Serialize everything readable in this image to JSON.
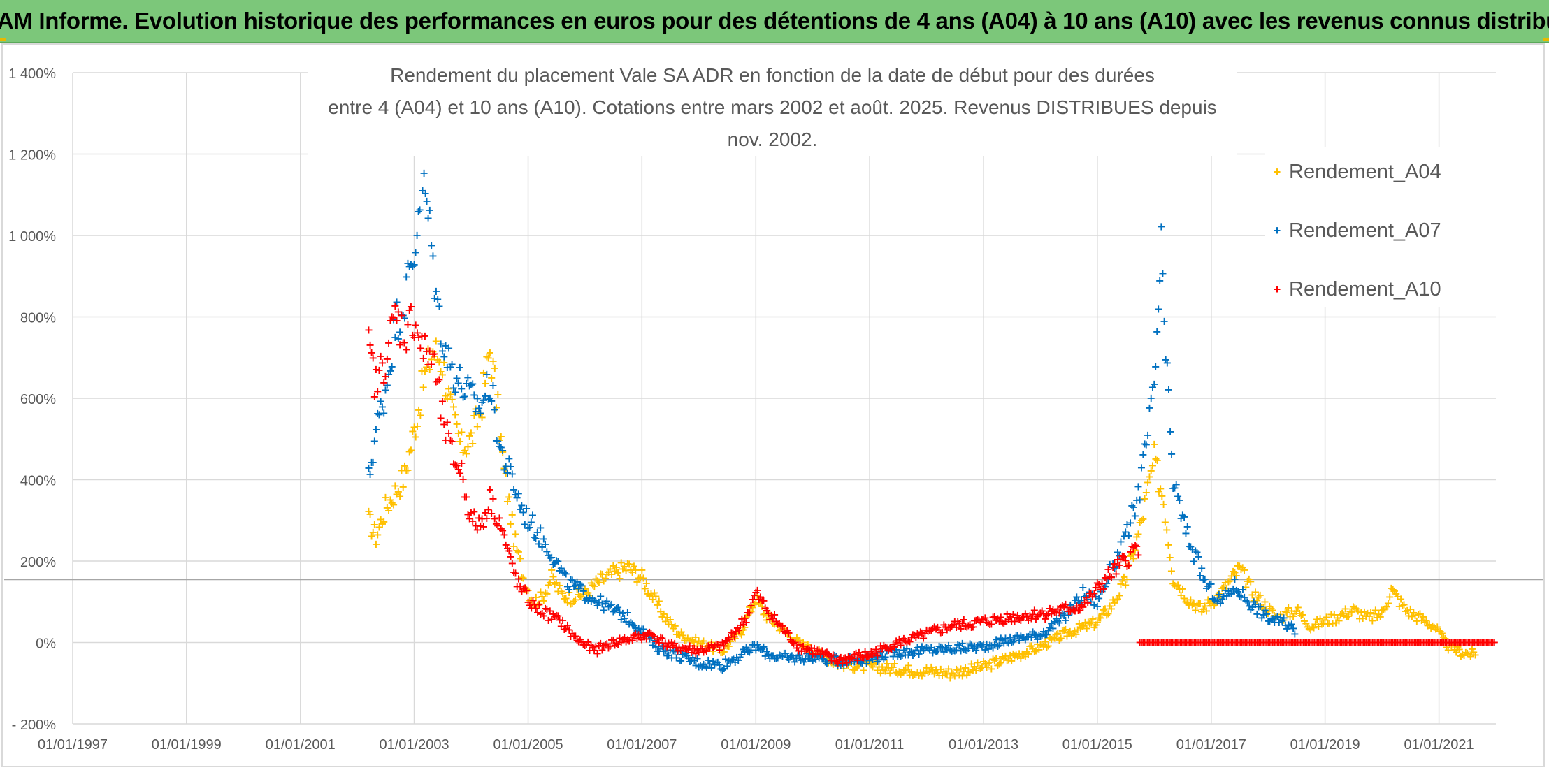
{
  "header": {
    "banner": "ADAM Informe. Evolution historique des performances en euros pour des détentions de 4 ans (A04) à 10 ans (A10) avec les revenus connus distribués"
  },
  "chart_data": {
    "type": "scatter",
    "title_line1": "Rendement du placement Vale SA ADR en fonction de la date de début pour des durées",
    "title_line2": "entre 4 (A04) et 10 ans (A10). Cotations entre mars 2002 et août. 2025. Revenus DISTRIBUES depuis nov. 2002.",
    "xlabel": "",
    "ylabel": "",
    "x_ticks": [
      "01/01/1997",
      "01/01/1999",
      "01/01/2001",
      "01/01/2003",
      "01/01/2005",
      "01/01/2007",
      "01/01/2009",
      "01/01/2011",
      "01/01/2013",
      "01/01/2015",
      "01/01/2017",
      "01/01/2019",
      "01/01/2021"
    ],
    "xlim": [
      "1997-01-01",
      "2022-01-01"
    ],
    "y_ticks": [
      "- 200%",
      "0%",
      "200%",
      "400%",
      "600%",
      "800%",
      "1 000%",
      "1 200%",
      "1 400%"
    ],
    "ylim": [
      -200,
      1400
    ],
    "reference_line": 155,
    "legend_position": "top-right",
    "grid": true,
    "series": [
      {
        "name": "Rendement_A04",
        "color": "#ffc000",
        "points": [
          [
            "2002-03-15",
            300
          ],
          [
            "2002-05-01",
            260
          ],
          [
            "2002-07-01",
            330
          ],
          [
            "2002-09-01",
            370
          ],
          [
            "2002-11-01",
            410
          ],
          [
            "2003-01-01",
            520
          ],
          [
            "2003-03-01",
            640
          ],
          [
            "2003-05-01",
            720
          ],
          [
            "2003-07-01",
            690
          ],
          [
            "2003-09-01",
            560
          ],
          [
            "2003-11-01",
            480
          ],
          [
            "2004-01-01",
            500
          ],
          [
            "2004-03-01",
            570
          ],
          [
            "2004-05-01",
            720
          ],
          [
            "2004-06-01",
            640
          ],
          [
            "2004-08-01",
            420
          ],
          [
            "2004-10-01",
            260
          ],
          [
            "2004-12-01",
            160
          ],
          [
            "2005-02-01",
            100
          ],
          [
            "2005-04-01",
            110
          ],
          [
            "2005-06-01",
            160
          ],
          [
            "2005-08-01",
            120
          ],
          [
            "2005-10-01",
            110
          ],
          [
            "2006-01-01",
            120
          ],
          [
            "2006-04-01",
            150
          ],
          [
            "2006-07-01",
            170
          ],
          [
            "2006-10-01",
            185
          ],
          [
            "2007-01-01",
            160
          ],
          [
            "2007-03-01",
            120
          ],
          [
            "2007-06-01",
            60
          ],
          [
            "2007-09-01",
            20
          ],
          [
            "2008-01-01",
            0
          ],
          [
            "2008-06-01",
            -20
          ],
          [
            "2008-10-01",
            30
          ],
          [
            "2009-01-01",
            110
          ],
          [
            "2009-03-01",
            70
          ],
          [
            "2009-06-01",
            40
          ],
          [
            "2009-10-01",
            0
          ],
          [
            "2010-01-01",
            -20
          ],
          [
            "2010-06-01",
            -50
          ],
          [
            "2011-01-01",
            -60
          ],
          [
            "2011-06-01",
            -65
          ],
          [
            "2012-01-01",
            -70
          ],
          [
            "2012-06-01",
            -75
          ],
          [
            "2013-01-01",
            -60
          ],
          [
            "2013-06-01",
            -40
          ],
          [
            "2014-01-01",
            -10
          ],
          [
            "2014-06-01",
            20
          ],
          [
            "2015-01-01",
            50
          ],
          [
            "2015-04-01",
            90
          ],
          [
            "2015-07-01",
            150
          ],
          [
            "2015-10-01",
            280
          ],
          [
            "2016-01-01",
            450
          ],
          [
            "2016-03-01",
            350
          ],
          [
            "2016-05-01",
            160
          ],
          [
            "2016-08-01",
            110
          ],
          [
            "2016-11-01",
            80
          ],
          [
            "2017-03-01",
            120
          ],
          [
            "2017-07-01",
            180
          ],
          [
            "2017-10-01",
            120
          ],
          [
            "2018-03-01",
            60
          ],
          [
            "2018-07-01",
            80
          ],
          [
            "2018-10-01",
            40
          ],
          [
            "2019-03-01",
            60
          ],
          [
            "2019-07-01",
            80
          ],
          [
            "2019-10-01",
            60
          ],
          [
            "2020-01-01",
            70
          ],
          [
            "2020-03-01",
            130
          ],
          [
            "2020-06-01",
            80
          ],
          [
            "2020-09-01",
            60
          ],
          [
            "2020-12-01",
            40
          ],
          [
            "2021-03-01",
            -10
          ],
          [
            "2021-06-01",
            -25
          ],
          [
            "2021-09-01",
            -30
          ]
        ]
      },
      {
        "name": "Rendement_A07",
        "color": "#0070c0",
        "points": [
          [
            "2002-03-15",
            400
          ],
          [
            "2002-05-01",
            520
          ],
          [
            "2002-07-01",
            620
          ],
          [
            "2002-09-01",
            780
          ],
          [
            "2002-11-01",
            850
          ],
          [
            "2003-01-01",
            950
          ],
          [
            "2003-02-15",
            1150
          ],
          [
            "2003-04-01",
            1050
          ],
          [
            "2003-06-01",
            820
          ],
          [
            "2003-08-01",
            700
          ],
          [
            "2003-10-01",
            650
          ],
          [
            "2004-01-01",
            600
          ],
          [
            "2004-03-01",
            580
          ],
          [
            "2004-05-01",
            640
          ],
          [
            "2004-07-01",
            480
          ],
          [
            "2004-09-01",
            420
          ],
          [
            "2004-12-01",
            320
          ],
          [
            "2005-03-01",
            270
          ],
          [
            "2005-06-01",
            220
          ],
          [
            "2005-09-01",
            150
          ],
          [
            "2006-01-01",
            120
          ],
          [
            "2006-04-01",
            100
          ],
          [
            "2006-07-01",
            80
          ],
          [
            "2006-10-01",
            60
          ],
          [
            "2007-01-01",
            30
          ],
          [
            "2007-04-01",
            -10
          ],
          [
            "2007-08-01",
            -30
          ],
          [
            "2008-01-01",
            -50
          ],
          [
            "2008-06-01",
            -55
          ],
          [
            "2008-10-01",
            -30
          ],
          [
            "2009-01-01",
            -10
          ],
          [
            "2009-04-01",
            -30
          ],
          [
            "2009-08-01",
            -40
          ],
          [
            "2010-01-01",
            -35
          ],
          [
            "2010-06-01",
            -45
          ],
          [
            "2011-01-01",
            -40
          ],
          [
            "2011-06-01",
            -25
          ],
          [
            "2012-01-01",
            -20
          ],
          [
            "2012-06-01",
            -15
          ],
          [
            "2013-01-01",
            -10
          ],
          [
            "2013-06-01",
            5
          ],
          [
            "2014-01-01",
            20
          ],
          [
            "2014-06-01",
            60
          ],
          [
            "2014-10-01",
            120
          ],
          [
            "2015-01-01",
            100
          ],
          [
            "2015-04-01",
            180
          ],
          [
            "2015-07-01",
            250
          ],
          [
            "2015-10-01",
            380
          ],
          [
            "2016-01-01",
            620
          ],
          [
            "2016-02-15",
            960
          ],
          [
            "2016-03-15",
            700
          ],
          [
            "2016-05-01",
            400
          ],
          [
            "2016-07-01",
            300
          ],
          [
            "2016-09-01",
            230
          ],
          [
            "2016-12-01",
            140
          ],
          [
            "2017-03-01",
            100
          ],
          [
            "2017-06-01",
            140
          ],
          [
            "2017-09-01",
            100
          ],
          [
            "2018-01-01",
            60
          ],
          [
            "2018-04-01",
            50
          ],
          [
            "2018-07-01",
            30
          ]
        ]
      },
      {
        "name": "Rendement_A10",
        "color": "#ff0000",
        "points": [
          [
            "2002-03-15",
            720
          ],
          [
            "2002-05-01",
            630
          ],
          [
            "2002-07-01",
            700
          ],
          [
            "2002-09-01",
            800
          ],
          [
            "2002-11-01",
            760
          ],
          [
            "2003-01-01",
            800
          ],
          [
            "2003-03-01",
            710
          ],
          [
            "2003-05-01",
            700
          ],
          [
            "2003-07-01",
            550
          ],
          [
            "2003-09-01",
            460
          ],
          [
            "2003-11-01",
            420
          ],
          [
            "2004-01-01",
            300
          ],
          [
            "2004-03-01",
            290
          ],
          [
            "2004-05-01",
            350
          ],
          [
            "2004-07-01",
            300
          ],
          [
            "2004-09-01",
            210
          ],
          [
            "2004-11-01",
            140
          ],
          [
            "2005-02-01",
            90
          ],
          [
            "2005-05-01",
            70
          ],
          [
            "2005-08-01",
            50
          ],
          [
            "2005-11-01",
            10
          ],
          [
            "2006-03-01",
            -20
          ],
          [
            "2006-07-01",
            0
          ],
          [
            "2006-11-01",
            10
          ],
          [
            "2007-03-01",
            20
          ],
          [
            "2007-07-01",
            -10
          ],
          [
            "2008-01-01",
            -20
          ],
          [
            "2008-06-01",
            -10
          ],
          [
            "2008-11-01",
            60
          ],
          [
            "2009-01-01",
            120
          ],
          [
            "2009-04-01",
            70
          ],
          [
            "2009-07-01",
            30
          ],
          [
            "2009-10-01",
            -10
          ],
          [
            "2010-01-01",
            -20
          ],
          [
            "2010-06-01",
            -45
          ],
          [
            "2011-01-01",
            -30
          ],
          [
            "2011-06-01",
            -5
          ],
          [
            "2012-01-01",
            20
          ],
          [
            "2012-06-01",
            40
          ],
          [
            "2013-01-01",
            50
          ],
          [
            "2013-06-01",
            60
          ],
          [
            "2014-01-01",
            70
          ],
          [
            "2014-06-01",
            80
          ],
          [
            "2014-10-01",
            90
          ],
          [
            "2015-01-01",
            130
          ],
          [
            "2015-04-01",
            170
          ],
          [
            "2015-07-01",
            200
          ],
          [
            "2015-09-01",
            230
          ],
          [
            "2015-10-01",
            0
          ],
          [
            "2017-01-01",
            0
          ],
          [
            "2018-01-01",
            0
          ],
          [
            "2019-01-01",
            0
          ],
          [
            "2020-01-01",
            0
          ],
          [
            "2021-01-01",
            0
          ],
          [
            "2022-01-01",
            0
          ]
        ]
      }
    ]
  }
}
